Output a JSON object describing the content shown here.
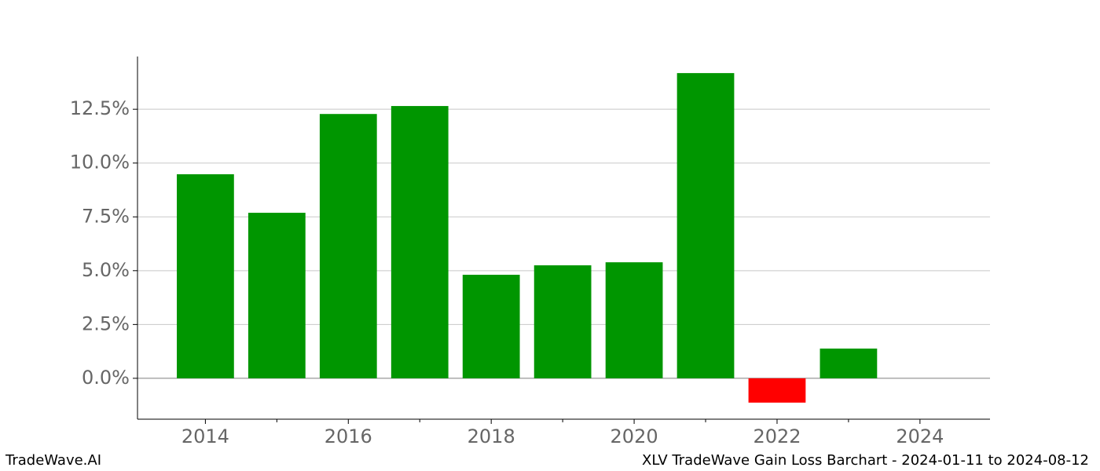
{
  "chart_data": {
    "type": "bar",
    "x": [
      2014,
      2015,
      2016,
      2017,
      2018,
      2019,
      2020,
      2021,
      2022,
      2023
    ],
    "values": [
      9.48,
      7.69,
      12.28,
      12.65,
      4.81,
      5.25,
      5.39,
      14.18,
      -1.13,
      1.38
    ],
    "color_positive": "#009600",
    "color_negative": "#ff0000",
    "xlim": [
      2013.05,
      2024.98
    ],
    "xticks": [
      2014,
      2016,
      2018,
      2020,
      2022,
      2024
    ],
    "xminorticks": [
      2015,
      2017,
      2019,
      2021,
      2023
    ],
    "ylim": [
      -1.9,
      14.95
    ],
    "yticks": [
      {
        "value": 0,
        "label": "0.0%"
      },
      {
        "value": 2.5,
        "label": "2.5%"
      },
      {
        "value": 5,
        "label": "5.0%"
      },
      {
        "value": 7.5,
        "label": "7.5%"
      },
      {
        "value": 10,
        "label": "10.0%"
      },
      {
        "value": 12.5,
        "label": "12.5%"
      }
    ],
    "grid": true
  },
  "footer": {
    "left": "TradeWave.AI",
    "right": "XLV TradeWave Gain Loss Barchart - 2024-01-11 to 2024-08-12"
  }
}
